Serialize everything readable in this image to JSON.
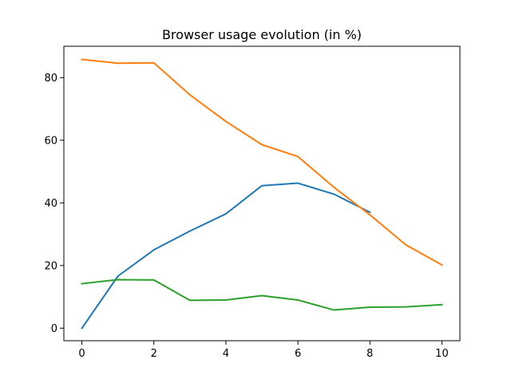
{
  "chart_data": {
    "type": "line",
    "title": "Browser usage evolution (in %)",
    "xlabel": "",
    "ylabel": "",
    "xlim": [
      -0.5,
      10.5
    ],
    "ylim": [
      -4.0,
      90.0
    ],
    "xticks": [
      0,
      2,
      4,
      6,
      8,
      10
    ],
    "yticks": [
      0,
      20,
      40,
      60,
      80
    ],
    "grid": false,
    "legend": "none",
    "series": [
      {
        "color": "#1f77b4",
        "x": [
          0,
          1,
          2,
          3,
          4,
          5,
          6,
          7,
          8
        ],
        "values": [
          0.0,
          16.6,
          25.0,
          31.0,
          36.5,
          45.5,
          46.3,
          42.8,
          37.0
        ]
      },
      {
        "color": "#ff7f0e",
        "x": [
          0,
          1,
          2,
          3,
          4,
          5,
          6,
          7,
          8,
          9,
          10
        ],
        "values": [
          85.8,
          84.6,
          84.7,
          74.5,
          66.0,
          58.6,
          54.8,
          45.0,
          36.2,
          26.6,
          20.2
        ]
      },
      {
        "color": "#2ca02c",
        "x": [
          0,
          1,
          2,
          3,
          4,
          5,
          6,
          7,
          8,
          9,
          10
        ],
        "values": [
          14.2,
          15.5,
          15.4,
          8.9,
          9.0,
          10.4,
          9.0,
          5.8,
          6.7,
          6.8,
          7.5
        ]
      }
    ]
  }
}
